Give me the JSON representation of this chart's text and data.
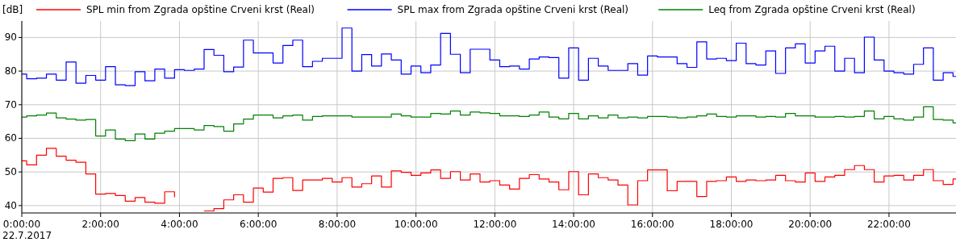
{
  "chart_data": {
    "type": "step",
    "ylabel": "[dB]",
    "annotations": [
      "22.7.2017"
    ],
    "x": [
      0,
      0.125,
      0.375,
      0.625,
      0.875,
      1.125,
      1.375,
      1.625,
      1.875,
      2.125,
      2.375,
      2.625,
      2.875,
      3.125,
      3.375,
      3.625,
      3.875,
      4.125,
      4.375,
      4.625,
      4.875,
      5.125,
      5.375,
      5.625,
      5.875,
      6.125,
      6.375,
      6.625,
      6.875,
      7.125,
      7.375,
      7.625,
      7.875,
      8.125,
      8.375,
      8.625,
      8.875,
      9.125,
      9.375,
      9.625,
      9.875,
      10.125,
      10.375,
      10.625,
      10.875,
      11.125,
      11.375,
      11.625,
      11.875,
      12.125,
      12.375,
      12.625,
      12.875,
      13.125,
      13.375,
      13.625,
      13.875,
      14.125,
      14.375,
      14.625,
      14.875,
      15.125,
      15.375,
      15.625,
      15.875,
      16.125,
      16.375,
      16.625,
      16.875,
      17.125,
      17.375,
      17.625,
      17.875,
      18.125,
      18.375,
      18.625,
      18.875,
      19.125,
      19.375,
      19.625,
      19.875,
      20.125,
      20.375,
      20.625,
      20.875,
      21.125,
      21.375,
      21.625,
      21.875,
      22.125,
      22.375,
      22.625,
      22.875,
      23.125,
      23.375,
      23.625
    ],
    "series": [
      {
        "name": "SPL min from Zgrada opštine Crveni krst (Real)",
        "color": "#ff0000",
        "values": [
          53.3,
          52.1,
          55.0,
          57.0,
          54.7,
          53.5,
          52.9,
          49.4,
          43.4,
          43.6,
          43.0,
          41.3,
          42.4,
          41.0,
          40.7,
          44.1,
          42.5,
          null,
          null,
          38.4,
          39.1,
          41.7,
          43.2,
          41.0,
          45.2,
          44.0,
          48.1,
          48.3,
          44.5,
          47.6,
          47.6,
          48.1,
          47.0,
          48.3,
          45.5,
          46.5,
          48.8,
          45.5,
          50.3,
          49.9,
          49.0,
          49.7,
          50.6,
          48.1,
          50.1,
          47.6,
          49.4,
          47.0,
          47.4,
          46.1,
          44.9,
          48.1,
          49.2,
          47.9,
          47.0,
          44.7,
          50.1,
          43.2,
          49.4,
          48.3,
          47.6,
          46.1,
          40.2,
          47.4,
          50.6,
          50.6,
          44.4,
          47.2,
          47.2,
          42.7,
          47.2,
          47.4,
          48.5,
          47.2,
          47.6,
          47.4,
          47.6,
          49.0,
          47.4,
          47.0,
          49.7,
          47.2,
          48.5,
          49.0,
          50.7,
          51.9,
          50.7,
          47.0,
          48.8,
          49.0,
          47.6,
          49.0,
          50.7,
          47.4,
          46.3,
          47.9
        ]
      },
      {
        "name": "SPL max from Zgrada opštine Crveni krst (Real)",
        "color": "#0000ff",
        "values": [
          79.1,
          77.7,
          77.9,
          79.1,
          77.3,
          82.7,
          76.4,
          78.7,
          77.3,
          81.3,
          75.9,
          75.7,
          79.8,
          77.1,
          80.6,
          77.9,
          80.4,
          80.2,
          80.6,
          86.4,
          84.7,
          79.8,
          81.2,
          89.2,
          85.4,
          85.4,
          82.4,
          87.6,
          89.2,
          81.3,
          82.9,
          83.8,
          83.8,
          92.8,
          80.0,
          84.9,
          81.5,
          85.1,
          83.3,
          79.1,
          81.5,
          79.5,
          81.8,
          91.2,
          85.0,
          79.5,
          86.5,
          86.5,
          83.3,
          81.3,
          81.5,
          80.6,
          83.6,
          84.2,
          84.0,
          77.9,
          86.9,
          77.3,
          83.8,
          81.5,
          80.2,
          80.2,
          82.2,
          78.8,
          84.5,
          84.2,
          84.2,
          82.2,
          81.1,
          88.7,
          83.6,
          83.8,
          83.1,
          88.3,
          82.2,
          81.8,
          86.0,
          79.3,
          86.9,
          88.1,
          82.4,
          86.0,
          87.4,
          80.0,
          83.8,
          79.5,
          90.1,
          83.3,
          80.0,
          79.5,
          79.1,
          82.0,
          86.9,
          77.3,
          79.5,
          78.4
        ]
      },
      {
        "name": "Leq from Zgrada opštine Crveni krst (Real)",
        "color": "#008000",
        "values": [
          66.3,
          66.7,
          66.9,
          67.5,
          66.1,
          65.7,
          65.4,
          65.6,
          60.7,
          62.5,
          59.8,
          59.3,
          61.3,
          59.8,
          61.5,
          62.1,
          62.9,
          62.9,
          62.5,
          63.8,
          63.5,
          62.1,
          64.3,
          65.7,
          66.9,
          66.9,
          66.1,
          66.7,
          66.9,
          65.4,
          66.5,
          66.7,
          66.7,
          66.7,
          66.3,
          66.3,
          66.3,
          66.3,
          67.2,
          66.7,
          66.3,
          66.3,
          67.4,
          67.2,
          68.1,
          66.9,
          67.8,
          67.6,
          67.4,
          66.7,
          66.7,
          66.5,
          66.9,
          67.8,
          66.3,
          65.8,
          67.4,
          65.8,
          66.7,
          66.1,
          66.9,
          66.1,
          66.3,
          66.1,
          66.5,
          66.5,
          66.3,
          66.1,
          66.3,
          66.7,
          67.2,
          66.5,
          66.3,
          66.7,
          66.7,
          66.3,
          66.5,
          66.3,
          67.4,
          66.7,
          66.7,
          66.3,
          66.3,
          66.5,
          66.3,
          66.5,
          68.1,
          65.8,
          66.5,
          65.8,
          65.4,
          66.3,
          69.4,
          65.6,
          65.4,
          64.6
        ]
      }
    ],
    "xlim": [
      0,
      23.7
    ],
    "xticks": [
      {
        "value": 0,
        "label": "0:00:00"
      },
      {
        "value": 2,
        "label": "2:00:00"
      },
      {
        "value": 4,
        "label": "4:00:00"
      },
      {
        "value": 6,
        "label": "6:00:00"
      },
      {
        "value": 8,
        "label": "8:00:00"
      },
      {
        "value": 10,
        "label": "10:00:00"
      },
      {
        "value": 12,
        "label": "12:00:00"
      },
      {
        "value": 14,
        "label": "14:00:00"
      },
      {
        "value": 16,
        "label": "16:00:00"
      },
      {
        "value": 18,
        "label": "18:00:00"
      },
      {
        "value": 20,
        "label": "20:00:00"
      },
      {
        "value": 22,
        "label": "22:00:00"
      }
    ],
    "ylim": [
      37.8,
      94.9
    ],
    "yticks": [
      40,
      50,
      60,
      70,
      80,
      90
    ],
    "grid": true,
    "legend": "top"
  }
}
